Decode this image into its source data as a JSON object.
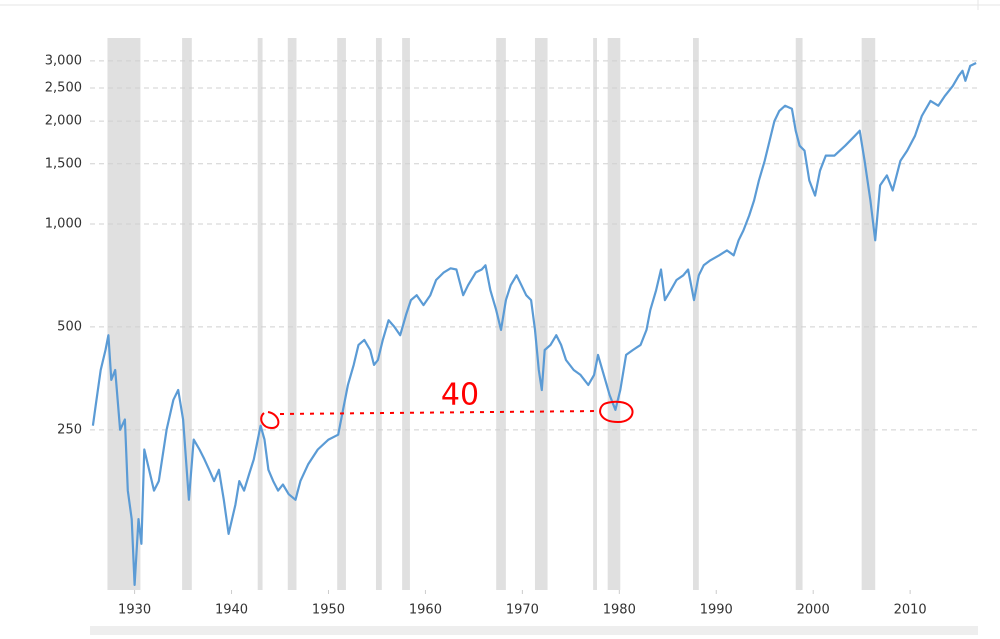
{
  "chart_data": {
    "type": "line",
    "annotation": "40",
    "log_scale": true,
    "grid": true,
    "recession_color": "#e0e0e0",
    "recessions": [
      [
        1927.2,
        1930.6
      ],
      [
        1934.9,
        1935.9
      ],
      [
        1942.7,
        1943.2
      ],
      [
        1945.8,
        1946.7
      ],
      [
        1950.9,
        1951.8
      ],
      [
        1954.9,
        1955.5
      ],
      [
        1957.6,
        1958.4
      ],
      [
        1967.3,
        1968.3
      ],
      [
        1971.3,
        1972.6
      ],
      [
        1977.3,
        1977.7
      ],
      [
        1978.8,
        1980.1
      ],
      [
        1987.6,
        1988.2
      ],
      [
        1998.2,
        1998.9
      ],
      [
        2005.0,
        2006.4
      ]
    ],
    "xlim": [
      1925.4,
      2017
    ],
    "xticks": [
      1930,
      1940,
      1950,
      1960,
      1970,
      1980,
      1990,
      2000,
      2010
    ],
    "ylim": [
      85,
      3500
    ],
    "yticks": [
      250,
      500,
      {
        "value": 1000,
        "label": "1,000"
      },
      {
        "value": 1500,
        "label": "1,500"
      },
      {
        "value": 2000,
        "label": "2,000"
      },
      {
        "value": 2500,
        "label": "2,500"
      },
      {
        "value": 3000,
        "label": "3,000"
      }
    ],
    "series": [
      {
        "color": "#5b9bd5",
        "x": [
          1925.7,
          1926,
          1926.5,
          1927,
          1927.3,
          1927.6,
          1928,
          1928.5,
          1929,
          1929.3,
          1929.7,
          1930,
          1930.4,
          1930.7,
          1931,
          1931.5,
          1932,
          1932.5,
          1933.3,
          1934,
          1934.5,
          1935,
          1935.6,
          1936.1,
          1936.7,
          1937.2,
          1937.7,
          1938.2,
          1938.7,
          1939.2,
          1939.7,
          1940.4,
          1940.8,
          1941.3,
          1941.8,
          1942.3,
          1943.0,
          1943.4,
          1943.8,
          1944.3,
          1944.8,
          1945.3,
          1945.9,
          1946.6,
          1947.1,
          1947.9,
          1948.9,
          1950.0,
          1951.0,
          1951.5,
          1952.0,
          1952.6,
          1953.1,
          1953.7,
          1954.3,
          1954.7,
          1955.1,
          1955.6,
          1956.2,
          1956.8,
          1957.4,
          1958.0,
          1958.5,
          1959.1,
          1959.8,
          1960.5,
          1961.1,
          1961.9,
          1962.6,
          1963.2,
          1963.9,
          1964.4,
          1965.2,
          1965.8,
          1966.2,
          1966.7,
          1967.3,
          1967.8,
          1968.3,
          1968.8,
          1969.4,
          1969.9,
          1970.4,
          1970.9,
          1971.3,
          1971.7,
          1972.0,
          1972.3,
          1972.9,
          1973.5,
          1974.0,
          1974.5,
          1975.3,
          1976.0,
          1976.8,
          1977.4,
          1977.8,
          1978.4,
          1979.0,
          1979.6,
          1980.1,
          1980.7,
          1981.4,
          1982.2,
          1982.8,
          1983.2,
          1983.8,
          1984.3,
          1984.7,
          1985.3,
          1985.9,
          1986.6,
          1987.1,
          1987.7,
          1988.2,
          1988.7,
          1989.4,
          1990.3,
          1991.1,
          1991.8,
          1992.3,
          1992.8,
          1993.4,
          1993.9,
          1994.4,
          1995.0,
          1995.5,
          1996.0,
          1996.5,
          1997.1,
          1997.8,
          1998.2,
          1998.6,
          1999.1,
          1999.6,
          2000.2,
          2000.7,
          2001.3,
          2002.2,
          2003.3,
          2004.3,
          2004.8,
          2005.3,
          2005.9,
          2006.4,
          2006.9,
          2007.6,
          2008.2,
          2009.0,
          2009.7,
          2010.5,
          2011.2,
          2012.1,
          2012.9,
          2013.6,
          2014.4,
          2015.0,
          2015.4,
          2015.7,
          2016.2,
          2016.8
        ],
        "values": [
          257,
          296,
          374,
          428,
          473,
          350,
          374,
          250,
          268,
          166,
          137,
          88,
          137,
          116,
          219,
          191,
          166,
          177,
          250,
          306,
          327,
          268,
          156,
          234,
          219,
          205,
          191,
          177,
          191,
          156,
          124,
          151,
          177,
          166,
          185,
          205,
          257,
          234,
          191,
          177,
          166,
          173,
          162,
          156,
          177,
          198,
          219,
          234,
          242,
          286,
          338,
          387,
          443,
          458,
          428,
          387,
          400,
          458,
          523,
          500,
          473,
          542,
          599,
          619,
          579,
          619,
          686,
          722,
          742,
          736,
          619,
          662,
          722,
          736,
          757,
          640,
          560,
          490,
          599,
          662,
          708,
          662,
          619,
          599,
          490,
          374,
          327,
          428,
          443,
          473,
          443,
          400,
          374,
          362,
          338,
          362,
          414,
          362,
          316,
          286,
          327,
          414,
          428,
          443,
          490,
          560,
          640,
          736,
          599,
          640,
          686,
          708,
          736,
          599,
          708,
          757,
          783,
          810,
          837,
          810,
          896,
          957,
          1059,
          1172,
          1340,
          1531,
          1753,
          2000,
          2142,
          2218,
          2174,
          1874,
          1694,
          1640,
          1340,
          1211,
          1432,
          1585,
          1585,
          1694,
          1811,
          1874,
          1531,
          1172,
          896,
          1297,
          1387,
          1253,
          1531,
          1640,
          1811,
          2070,
          2291,
          2218,
          2371,
          2535,
          2711,
          2806,
          2624,
          2900,
          2958
        ]
      }
    ]
  }
}
